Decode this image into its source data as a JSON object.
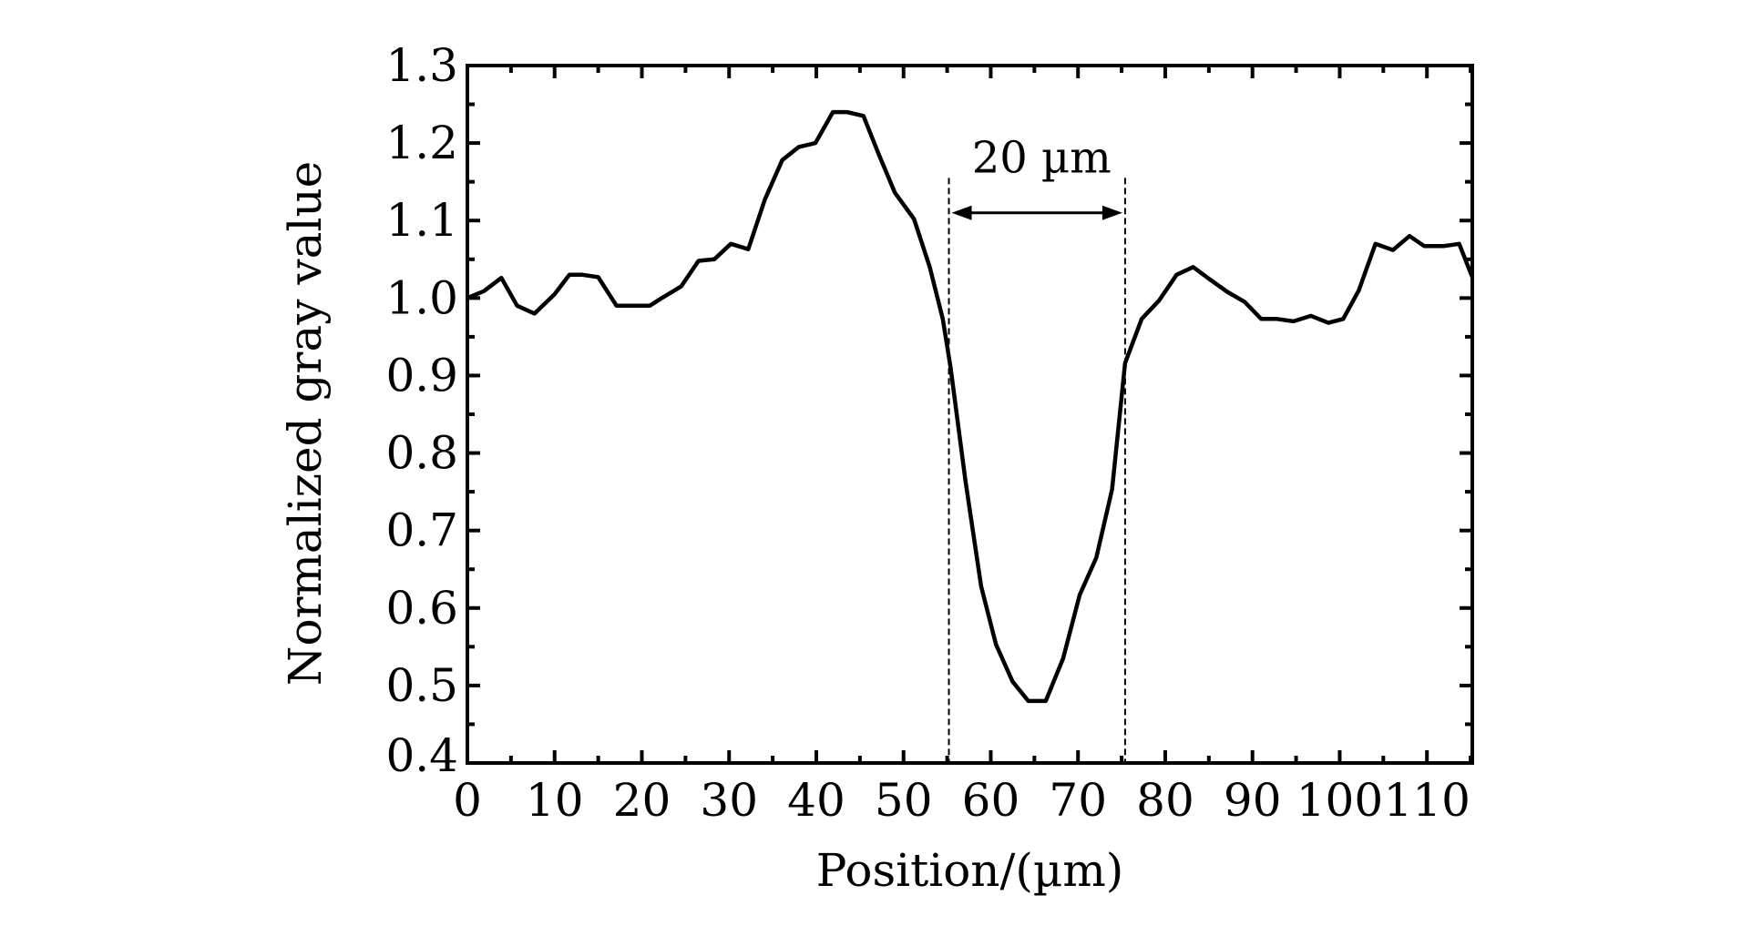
{
  "chart_data": {
    "type": "line",
    "title": "",
    "xlabel": "Position/(µm)",
    "ylabel": "Normalized gray value",
    "xlim": [
      0,
      115.2
    ],
    "ylim": [
      0.4,
      1.3
    ],
    "xticks": [
      0,
      10,
      20,
      30,
      40,
      50,
      60,
      70,
      80,
      90,
      100,
      110
    ],
    "xtick_labels": [
      "0",
      "10",
      "20",
      "30",
      "40",
      "50",
      "60",
      "70",
      "80",
      "90",
      "100",
      "110"
    ],
    "yticks": [
      0.4,
      0.5,
      0.6,
      0.7,
      0.8,
      0.9,
      1.0,
      1.1,
      1.2,
      1.3
    ],
    "ytick_labels": [
      "0.4",
      "0.5",
      "0.6",
      "0.7",
      "0.8",
      "0.9",
      "1.0",
      "1.1",
      "1.2",
      "1.3"
    ],
    "grid": false,
    "series": [
      {
        "name": "profile",
        "color": "#000000",
        "x": [
          0,
          1.9,
          3.9,
          5.7,
          7.7,
          10,
          11.7,
          13.2,
          15,
          17.1,
          20.9,
          22.3,
          24.5,
          26.5,
          28.3,
          30.2,
          32.2,
          34.1,
          36.1,
          38,
          39.9,
          41.9,
          43.5,
          45.4,
          47.1,
          49,
          51.2,
          53,
          54.5,
          55.4,
          57.1,
          58.9,
          60.6,
          62.5,
          64.3,
          66.3,
          68.3,
          70.2,
          72.1,
          73.9,
          75.4,
          77.3,
          79.3,
          81.3,
          83.2,
          85,
          87.1,
          89.1,
          91,
          92.8,
          94.7,
          96.7,
          98.7,
          100.4,
          102.2,
          104.1,
          106.1,
          108,
          109.7,
          111.9,
          113.7,
          115.2
        ],
        "y": [
          1.0,
          1.009,
          1.026,
          0.99,
          0.98,
          1.005,
          1.03,
          1.03,
          1.027,
          0.99,
          0.99,
          1.0,
          1.015,
          1.048,
          1.05,
          1.07,
          1.063,
          1.127,
          1.178,
          1.195,
          1.2,
          1.24,
          1.24,
          1.235,
          1.187,
          1.136,
          1.102,
          1.04,
          0.973,
          0.91,
          0.764,
          0.628,
          0.553,
          0.505,
          0.48,
          0.48,
          0.535,
          0.617,
          0.665,
          0.753,
          0.916,
          0.973,
          0.997,
          1.03,
          1.04,
          1.025,
          1.008,
          0.995,
          0.973,
          0.973,
          0.97,
          0.977,
          0.968,
          0.973,
          1.01,
          1.07,
          1.062,
          1.08,
          1.067,
          1.067,
          1.07,
          1.027
        ]
      }
    ],
    "annotations": [
      {
        "type": "dashed-vline",
        "x": 55.2
      },
      {
        "type": "dashed-vline",
        "x": 75.4
      },
      {
        "type": "double-arrow",
        "x_from": 55.2,
        "x_to": 75.4,
        "y": 1.11,
        "label": "20 µm"
      }
    ]
  }
}
